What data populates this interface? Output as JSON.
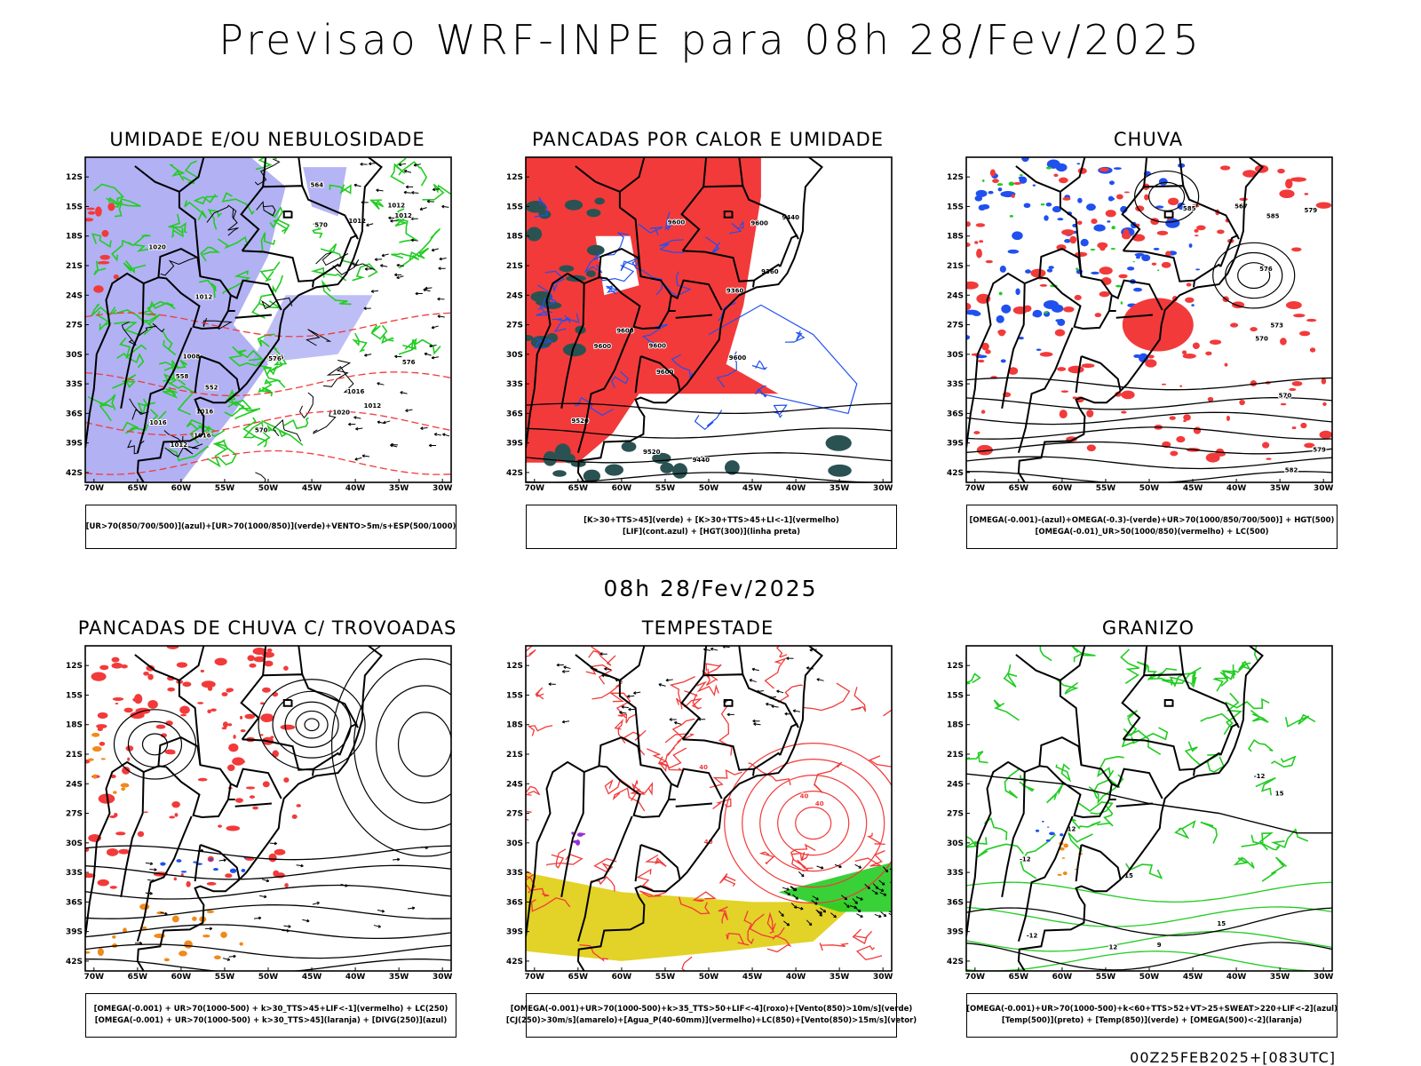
{
  "title": "Previsao WRF-INPE  para 08h 28/Fev/2025",
  "subtitle": "08h 28/Fev/2025",
  "run_stamp": "00Z25FEB2025+[083UTC]",
  "axes": {
    "lat_labels": [
      "12S",
      "15S",
      "18S",
      "21S",
      "24S",
      "27S",
      "30S",
      "33S",
      "36S",
      "39S",
      "42S"
    ],
    "lon_labels": [
      "70W",
      "65W",
      "60W",
      "55W",
      "50W",
      "45W",
      "40W",
      "35W",
      "30W"
    ],
    "lat_range": [
      -43,
      -10
    ],
    "lon_range": [
      -71,
      -29
    ]
  },
  "colors": {
    "blue_fill": "#a3a3f2",
    "green": "#22cc22",
    "red": "#f23a3a",
    "blue": "#2050ee",
    "dark_teal": "#2b5252",
    "yellow": "#e3d228",
    "orange": "#f08a1a",
    "purple": "#9a2fd6"
  },
  "chart_data": [
    {
      "type": "contour",
      "title": "UMIDADE E/OU NEBULOSIDADE",
      "legend": [
        "[UR>70(850/700/500)](azul)+[UR>70(1000/850)](verde)+VENTO>5m/s+ESP(500/1000)"
      ],
      "contour_labels": [
        "1012",
        "1012",
        "1016",
        "1012",
        "1016",
        "1016",
        "1020",
        "1012",
        "1008",
        "1016",
        "1020",
        "1012",
        "1016",
        "1012",
        "576",
        "576",
        "570",
        "564",
        "558",
        "552",
        "570"
      ]
    },
    {
      "type": "contour",
      "title": "PANCADAS POR CALOR E UMIDADE",
      "legend": [
        "[K>30+TTS>45](verde) + [K>30+TTS>45+LI<-1](vermelho)",
        "[LIF](cont.azul) + [HGT(300)](linha preta)"
      ],
      "contour_labels": [
        "9600",
        "9600",
        "9600",
        "9600",
        "9600",
        "9600",
        "9600",
        "9520",
        "9520",
        "9440",
        "9440",
        "9360",
        "9360"
      ]
    },
    {
      "type": "contour",
      "title": "CHUVA",
      "legend": [
        "[OMEGA(-0.001)-(azul)+OMEGA(-0.3)-(verde)+UR>70(1000/850/700/500)] + HGT(500)",
        "[OMEGA(-0.01)_UR>50(1000/850)(vermelho) + LC(500)"
      ],
      "contour_labels": [
        "585",
        "585",
        "582",
        "579",
        "579",
        "576",
        "573",
        "570",
        "570",
        "567"
      ]
    },
    {
      "type": "contour",
      "title": "PANCADAS DE CHUVA C/ TROVOADAS",
      "legend": [
        "[OMEGA(-0.001) + UR>70(1000-500) + k>30_TTS>45+LIF<-1](vermelho) + LC(250)",
        "[OMEGA(-0.001) + UR>70(1000-500) + k>30_TTS>45](laranja) + [DIVG(250)](azul)"
      ],
      "contour_labels": []
    },
    {
      "type": "contour",
      "title": "TEMPESTADE",
      "legend": [
        "[OMEGA(-0.001)+UR>70(1000-500)+k>35_TTS>50+LIF<-4](roxo)+[Vento(850)>10m/s](verde)",
        "[CJ(250)>30m/s](amarelo)+[Agua_P(40-60mm)](vermelho)+LC(850)+[Vento(850)>15m/s](vetor)"
      ],
      "contour_labels": [
        "40",
        "40",
        "40",
        "40"
      ]
    },
    {
      "type": "contour",
      "title": "GRANIZO",
      "legend": [
        "[OMEGA(-0.001)+UR>70(1000-500)+k<60+TTS>52+VT>25+SWEAT>220+LIF<-2](azul)",
        "[Temp(500)](preto) + [Temp(850)](verde) + [OMEGA(500)<-2](laranja)"
      ],
      "contour_labels": [
        "-12",
        "-12",
        "-12",
        "15",
        "15",
        "15",
        "12",
        "12",
        "9"
      ]
    }
  ]
}
